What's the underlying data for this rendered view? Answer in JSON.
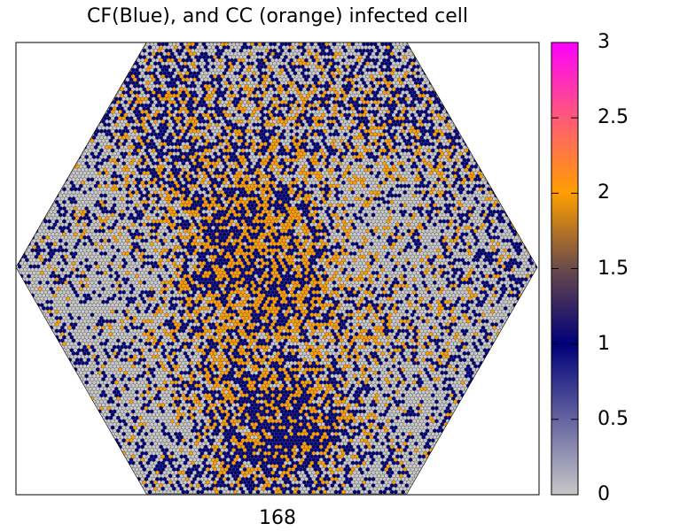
{
  "chart_data": {
    "type": "heatmap",
    "title": "CF(Blue), and CC (orange) infected cell",
    "xlabel": "168",
    "ylabel": "",
    "shape": "hexagonal lattice",
    "value_range": [
      0,
      3
    ],
    "colorbar": {
      "ticks": [
        0,
        0.5,
        1,
        1.5,
        2,
        2.5,
        3
      ],
      "tick_labels": [
        "0",
        "0.5",
        "1",
        "1.5",
        "2",
        "2.5",
        "3"
      ],
      "colormap": [
        {
          "value": 0,
          "color": "#c8c8c8"
        },
        {
          "value": 1,
          "color": "#00007a"
        },
        {
          "value": 1.5,
          "color": "#6a4a4a"
        },
        {
          "value": 2,
          "color": "#ff9e00"
        },
        {
          "value": 2.5,
          "color": "#ff5a78"
        },
        {
          "value": 3,
          "color": "#ff00ff"
        }
      ]
    },
    "category_fractions": {
      "0": 0.36,
      "1": 0.38,
      "2": 0.26
    },
    "category_meaning": {
      "0": "uninfected",
      "1": "CF infected (blue)",
      "2": "CC infected (orange)"
    }
  }
}
